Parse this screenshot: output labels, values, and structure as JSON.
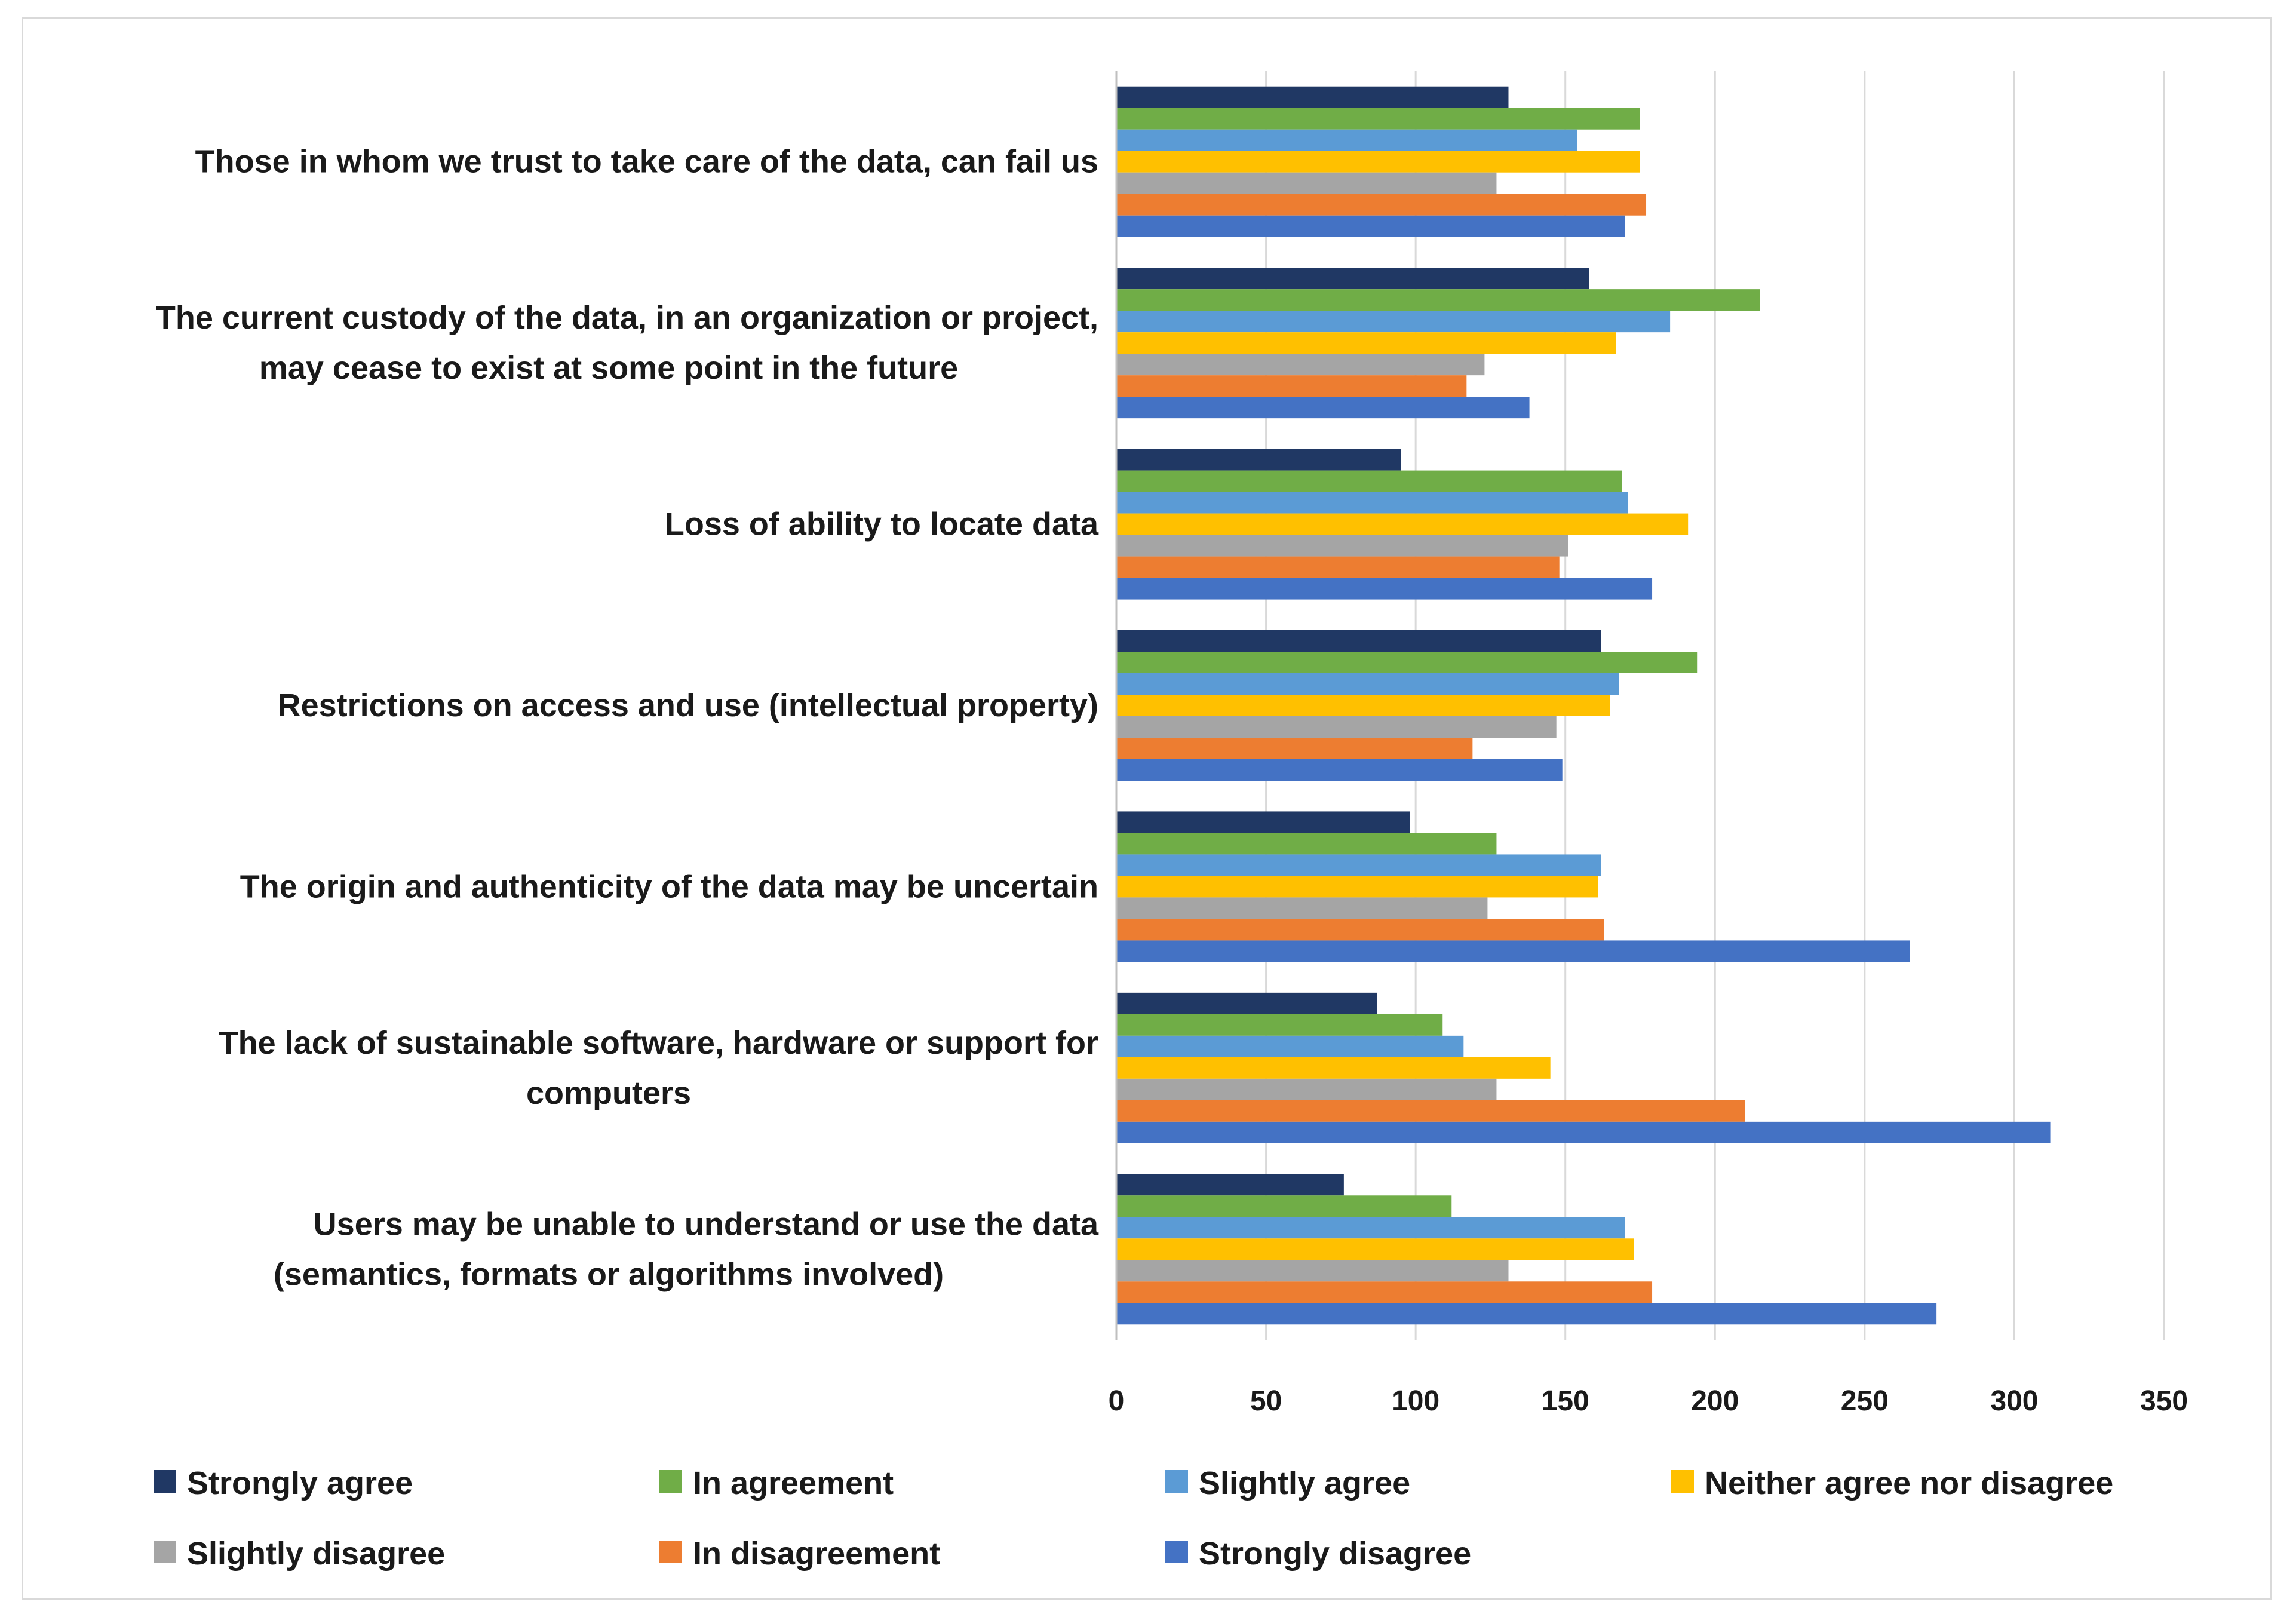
{
  "chart_data": {
    "type": "bar",
    "orientation": "horizontal",
    "title": "",
    "xlabel": "",
    "ylabel": "",
    "xlim": [
      0,
      350
    ],
    "x_ticks": [
      0,
      50,
      100,
      150,
      200,
      250,
      300,
      350
    ],
    "grid": true,
    "legend_position": "bottom",
    "categories": [
      [
        "Those in whom we trust to take care of the data, can fail us"
      ],
      [
        "The current custody of the data, in an organization or project,",
        "may cease to exist at some point in the future"
      ],
      [
        "Loss of ability to locate data"
      ],
      [
        "Restrictions on access and use (intellectual property)"
      ],
      [
        "The origin and authenticity of the data may be uncertain"
      ],
      [
        "The lack of sustainable software, hardware or support for",
        "computers"
      ],
      [
        "Users may be unable to understand or use the data",
        "(semantics, formats or algorithms involved)"
      ]
    ],
    "series": [
      {
        "name": "Strongly agree",
        "color": "#203864",
        "values": [
          131,
          158,
          95,
          162,
          98,
          87,
          76
        ]
      },
      {
        "name": "In agreement",
        "color": "#70AD47",
        "values": [
          175,
          215,
          169,
          194,
          127,
          109,
          112
        ]
      },
      {
        "name": "Slightly agree",
        "color": "#5B9BD5",
        "values": [
          154,
          185,
          171,
          168,
          162,
          116,
          170
        ]
      },
      {
        "name": "Neither agree nor disagree",
        "color": "#FFC000",
        "values": [
          175,
          167,
          191,
          165,
          161,
          145,
          173
        ]
      },
      {
        "name": "Slightly disagree",
        "color": "#A5A5A5",
        "values": [
          127,
          123,
          151,
          147,
          124,
          127,
          131
        ]
      },
      {
        "name": "In disagreement",
        "color": "#ED7D31",
        "values": [
          177,
          117,
          148,
          119,
          163,
          210,
          179
        ]
      },
      {
        "name": "Strongly disagree",
        "color": "#4472C4",
        "values": [
          170,
          138,
          179,
          149,
          265,
          312,
          274
        ]
      }
    ]
  }
}
